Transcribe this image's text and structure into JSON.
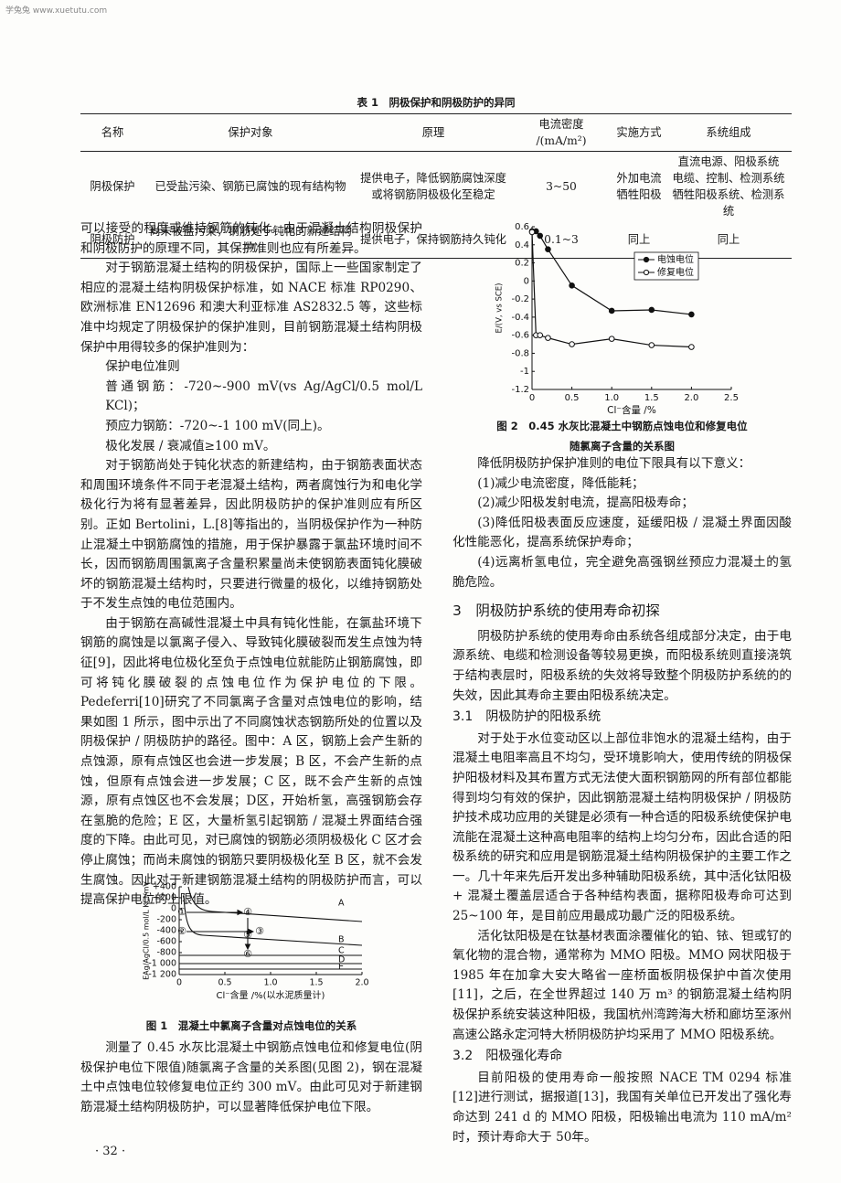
{
  "watermark": "学兔兔 www.xuetutu.com",
  "table": {
    "title": "表 1　阴极保护和阴极防护的异同",
    "header": [
      "名称",
      "保护对象",
      "原理",
      "电流密度 /(mA/m²)",
      "实施方式",
      "系统组成"
    ],
    "rows": [
      [
        [
          "阴极保护"
        ],
        [
          "已受盐污染、钢筋已腐蚀的现有结构物"
        ],
        [
          "提供电子，降低钢筋腐蚀深度",
          "或将钢筋阴极极化至稳定"
        ],
        [
          "3~50"
        ],
        [
          "外加电流",
          "牺牲阳极"
        ],
        [
          "直流电源、阳极系统",
          "电缆、控制、检测系统",
          "牺牲阳极系统、检测系统"
        ]
      ],
      [
        [
          "阴极防护"
        ],
        [
          "尚未被盐污染，钢筋处于钝化的新建结构物"
        ],
        [
          "提供电子，保持钢筋持久钝化"
        ],
        [
          "0.1~3"
        ],
        [
          "同上"
        ],
        [
          "同上"
        ]
      ]
    ]
  },
  "left": {
    "paragraphs": [
      "可以接受的程度或维持钢筋的钝化。由于混凝土结构阴极保护和阴极防护的原理不同，其保护准则也应有所差异。",
      "对于钢筋混凝土结构的阴极保护，国际上一些国家制定了相应的混凝土结构阴极保护标准，如 NACE 标准 RP0290、欧洲标准 EN12696 和澳大利亚标准 AS2832.5 等，这些标准中均规定了阴极保护的保护准则，目前钢筋混凝土结构阴极保护中用得较多的保护准则为：",
      "对于钢筋尚处于钝化状态的新建结构，由于钢筋表面状态和周围环境条件不同于老混凝土结构，两者腐蚀行为和电化学极化行为将有显著差异，因此阴极防护的保护准则应有所区别。正如 Bertolini，L.[8]等指出的，当阴极保护作为一种防止混凝土中钢筋腐蚀的措施，用于保护暴露于氯盐环境时间不长，因而钢筋周围氯离子含量积累量尚未使钢筋表面钝化膜破坏的钢筋混凝土结构时，只要进行微量的极化，以维持钢筋处于不发生点蚀的电位范围内。",
      "由于钢筋在高碱性混凝土中具有钝化性能，在氯盐环境下钢筋的腐蚀是以氯离子侵入、导致钝化膜破裂而发生点蚀为特征[9]，因此将电位极化至负于点蚀电位就能防止钢筋腐蚀，即可将钝化膜破裂的点蚀电位作为保护电位的下限。Pedeferri[10]研究了不同氯离子含量对点蚀电位的影响，结果如图 1 所示，图中示出了不同腐蚀状态钢筋所处的位置以及阴极保护 / 阴极防护的路径。图中：A 区，钢筋上会产生新的点蚀源，原有点蚀区也会进一步发展；B 区，不会产生新的点蚀，但原有点蚀会进一步发展；C 区，既不会产生新的点蚀源，原有点蚀区也不会发展；D区，开始析氢，高强钢筋会存在氢脆的危险；E 区，大量析氢引起钢筋 / 混凝土界面结合强度的下降。由此可见，对已腐蚀的钢筋必须阴极极化 C 区才会停止腐蚀；而尚未腐蚀的钢筋只要阴极极化至 B 区，就不会发生腐蚀。因此对于新建钢筋混凝土结构的阴极防护而言，可以提高保护电位的上限值。"
    ],
    "criteria": [
      "保护电位准则",
      "普通钢筋：-720~-900 mV(vs Ag/AgCl/0.5 mol/L KCl)；",
      "预应力钢筋：-720~-1 100 mV(同上)。",
      "极化发展 / 衰减值≥100 mV。"
    ],
    "after_figure": "测量了 0.45 水灰比混凝土中钢筋点蚀电位和修复电位(阴极保护电位下限值)随氯离子含量的关系图(见图 2)，钢在混凝土中点蚀电位较修复电位正约 300 mV。由此可见对于新建钢筋混凝土结构阴极防护，可以显著降低保护电位下限。",
    "page_number": "· 32 ·"
  },
  "right": {
    "intro": "降低阴极防护保护准则的电位下限具有以下意义：",
    "items": [
      "(1)减少电流密度，降低能耗；",
      "(2)减少阳极发射电流，提高阳极寿命；",
      "(3)降低阳极表面反应速度，延缓阳极 / 混凝土界面因酸化性能恶化，提高系统保护寿命；",
      "(4)远离析氢电位，完全避免高强钢丝预应力混凝土的氢脆危险。"
    ],
    "section3": {
      "heading": "3　阴极防护系统的使用寿命初探",
      "paragraph": "阴极防护系统的使用寿命由系统各组成部分决定，由于电源系统、电缆和检测设备等较易更换，而阳极系统则直接浇筑于结构表层时，阳极系统的失效将导致整个阴极防护系统的的失效，因此其寿命主要由阳极系统决定。"
    },
    "section31": {
      "heading": "3.1　阴极防护的阳极系统",
      "paragraphs": [
        "对于处于水位变动区以上部位非饱水的混凝土结构，由于混凝土电阻率高且不均匀，受环境影响大，使用传统的阴极保护阳极材料及其布置方式无法使大面积钢筋网的所有部位都能得到均匀有效的保护，因此钢筋混凝土结构阴极保护 / 阴极防护技术成功应用的关键是必须有一种合适的阳极系统使保护电流能在混凝土这种高电阻率的结构上均匀分布，因此合适的阳极系统的研究和应用是钢筋混凝土结构阴极保护的主要工作之一。几十年来先后开发出多种辅助阳极系统，其中活化钛阳极 + 混凝土覆盖层适合于各种结构表面，据称阳极寿命可达到 25~100 年，是目前应用最成功最广泛的阳极系统。",
        "活化钛阳极是在钛基材表面涂覆催化的铂、铱、钽或钌的氧化物的混合物，通常称为 MMO 阳极。MMO 网状阳极于 1985 年在加拿大安大略省一座桥面板阴极保护中首次使用[11]，之后，在全世界超过 140 万 m³ 的钢筋混凝土结构阴极保护系统安装这种阳极，我国杭州湾跨海大桥和廊坊至涿州高速公路永定河特大桥阴极防护均采用了 MMO 阳极系统。"
      ]
    },
    "section32": {
      "heading": "3.2　阳极强化寿命",
      "paragraph": "目前阳极的使用寿命一般按照 NACE TM 0294 标准[12]进行测试，据报道[13]，我国有关单位已开发出了强化寿命达到 241 d 的 MMO 阳极，阳极输出电流为 110 mA/m² 时，预计寿命大于 50年。"
    }
  },
  "chart_data": [
    {
      "type": "diagram",
      "caption": "图 1　混凝土中氯离子含量对点蚀电位的关系",
      "x_label": "Cl⁻含量 /%(以水泥质量计)",
      "y_label": "EAg/AgCl/0.5 mol/L KCl/mV",
      "xlim": [
        0,
        2
      ],
      "xticks": [
        0,
        0.5,
        {
          "value": 1,
          "label": "1.0"
        },
        1.5,
        {
          "value": 2,
          "label": "2.0"
        }
      ],
      "ylim": [
        -1200,
        400
      ],
      "yticks": [
        {
          "value": 400,
          "label": "+400"
        },
        {
          "value": 200,
          "label": "+200"
        },
        0,
        -200,
        -400,
        -600,
        -800,
        {
          "value": -1000,
          "label": "-1 000"
        },
        {
          "value": -1200,
          "label": "-1 200"
        }
      ],
      "regions": [
        "A",
        "B",
        "C",
        "D",
        "E"
      ],
      "markers": [
        "①",
        "②",
        "③",
        "④",
        "⑤",
        "⑥"
      ]
    },
    {
      "type": "line",
      "caption": "图 2　0.45 水灰比混凝土中钢筋点蚀电位和修复电位",
      "caption_line2": "随氯离子含量的关系图",
      "x_label": "Cl⁻含量 /%",
      "y_label": "E/(V, vs SCE)",
      "xlim": [
        0,
        2.5
      ],
      "xticks": [
        0,
        0.5,
        {
          "value": 1,
          "label": "1.0"
        },
        1.5,
        {
          "value": 2,
          "label": "2.0"
        },
        2.5
      ],
      "ylim": [
        -1.2,
        0.6
      ],
      "yticks": [
        0.6,
        0.4,
        0.2,
        0,
        -0.2,
        -0.4,
        -0.6,
        -0.8,
        -1,
        -1.2
      ],
      "legend": "upper right",
      "series": [
        {
          "name": "电蚀电位",
          "color": "#111111",
          "marker_fill": "#111111",
          "x": [
            0,
            0.05,
            0.1,
            0.2,
            0.5,
            1,
            1.5,
            2
          ],
          "values": [
            0.55,
            0.55,
            0.5,
            0.35,
            -0.05,
            -0.33,
            -0.32,
            -0.37
          ]
        },
        {
          "name": "修复电位",
          "color": "#111111",
          "marker_fill": "#ffffff",
          "x": [
            0,
            0.05,
            0.1,
            0.2,
            0.5,
            1,
            1.5,
            2
          ],
          "values": [
            0.54,
            -0.6,
            -0.6,
            -0.63,
            -0.7,
            -0.64,
            -0.71,
            -0.73
          ]
        }
      ]
    }
  ]
}
